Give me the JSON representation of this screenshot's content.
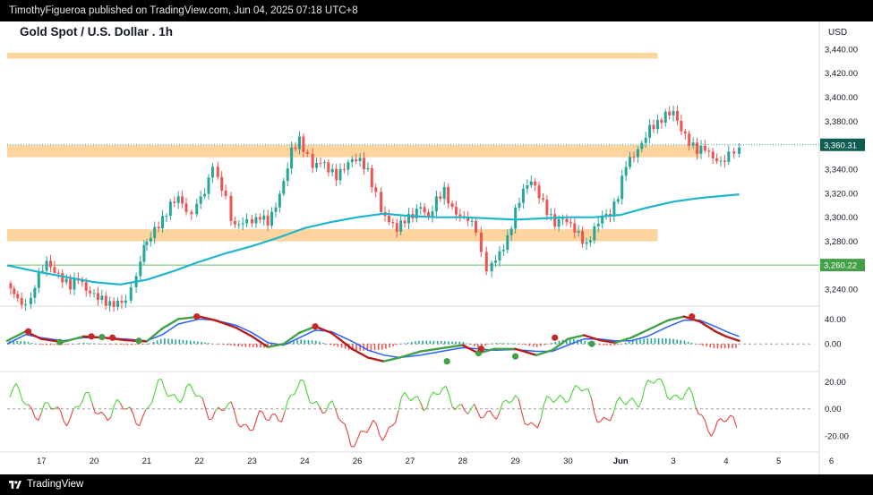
{
  "header": {
    "publisher_text": "TimothyFigueroa published on TradingView.com, Jun 04, 2025 07:18 UTC+8"
  },
  "footer": {
    "brand": "TradingView"
  },
  "chart_data": [
    {
      "type": "candlestick",
      "title": "Gold Spot / U.S. Dollar . 1h",
      "currency": "USD",
      "y_ticks": [
        "3,440.00",
        "3,420.00",
        "3,400.00",
        "3,380.00",
        "3,360.00",
        "3,340.00",
        "3,320.00",
        "3,300.00",
        "3,280.00",
        "3,260.00",
        "3,240.00"
      ],
      "y_tick_values": [
        3440,
        3420,
        3400,
        3380,
        3360,
        3340,
        3320,
        3300,
        3280,
        3260,
        3240
      ],
      "ylim": [
        3226,
        3460
      ],
      "x_ticks": [
        "17",
        "20",
        "21",
        "22",
        "23",
        "24",
        "26",
        "27",
        "28",
        "29",
        "30",
        "Jun",
        "3",
        "4",
        "5",
        "6"
      ],
      "x_tick_positions": [
        0,
        1,
        2,
        3,
        4,
        5,
        6,
        7,
        8,
        9,
        10,
        11,
        12,
        13,
        14,
        15
      ],
      "xlim": [
        -0.65,
        14.6
      ],
      "last_price_label": "3,360.31",
      "last_price": 3360.31,
      "horizontal_line_label": "3,260.22",
      "horizontal_line": 3260.22,
      "zones": [
        {
          "from": 3432,
          "to": 3437,
          "x_end": 11.7
        },
        {
          "from": 3350,
          "to": 3360,
          "x_end": 12.5
        },
        {
          "from": 3280,
          "to": 3290,
          "x_end": 11.7
        }
      ],
      "closes": [
        [
          -0.65,
          3245
        ],
        [
          -0.45,
          3232
        ],
        [
          -0.3,
          3226
        ],
        [
          -0.2,
          3236
        ],
        [
          -0.05,
          3252
        ],
        [
          0.1,
          3262
        ],
        [
          0.25,
          3254
        ],
        [
          0.4,
          3248
        ],
        [
          0.55,
          3243
        ],
        [
          0.7,
          3250
        ],
        [
          0.85,
          3240
        ],
        [
          1.0,
          3236
        ],
        [
          1.15,
          3232
        ],
        [
          1.3,
          3227
        ],
        [
          1.45,
          3228
        ],
        [
          1.6,
          3230
        ],
        [
          1.7,
          3240
        ],
        [
          1.8,
          3248
        ],
        [
          1.88,
          3260
        ],
        [
          1.95,
          3275
        ],
        [
          2.0,
          3280
        ],
        [
          2.15,
          3290
        ],
        [
          2.3,
          3298
        ],
        [
          2.45,
          3310
        ],
        [
          2.6,
          3316
        ],
        [
          2.75,
          3305
        ],
        [
          2.85,
          3300
        ],
        [
          2.95,
          3308
        ],
        [
          3.1,
          3322
        ],
        [
          3.25,
          3343
        ],
        [
          3.35,
          3335
        ],
        [
          3.5,
          3315
        ],
        [
          3.6,
          3300
        ],
        [
          3.75,
          3292
        ],
        [
          3.9,
          3298
        ],
        [
          4.0,
          3293
        ],
        [
          4.15,
          3301
        ],
        [
          4.3,
          3296
        ],
        [
          4.45,
          3310
        ],
        [
          4.6,
          3330
        ],
        [
          4.75,
          3356
        ],
        [
          4.9,
          3364
        ],
        [
          5.05,
          3350
        ],
        [
          5.15,
          3342
        ],
        [
          5.3,
          3346
        ],
        [
          5.45,
          3340
        ],
        [
          5.6,
          3334
        ],
        [
          5.75,
          3342
        ],
        [
          5.9,
          3349
        ],
        [
          6.05,
          3348
        ],
        [
          6.2,
          3338
        ],
        [
          6.35,
          3318
        ],
        [
          6.45,
          3306
        ],
        [
          6.6,
          3296
        ],
        [
          6.75,
          3290
        ],
        [
          6.9,
          3298
        ],
        [
          7.05,
          3302
        ],
        [
          7.2,
          3310
        ],
        [
          7.35,
          3300
        ],
        [
          7.5,
          3315
        ],
        [
          7.65,
          3322
        ],
        [
          7.8,
          3306
        ],
        [
          7.95,
          3300
        ],
        [
          8.1,
          3298
        ],
        [
          8.25,
          3290
        ],
        [
          8.35,
          3268
        ],
        [
          8.45,
          3253
        ],
        [
          8.55,
          3262
        ],
        [
          8.7,
          3270
        ],
        [
          8.85,
          3282
        ],
        [
          9.0,
          3305
        ],
        [
          9.15,
          3322
        ],
        [
          9.3,
          3330
        ],
        [
          9.45,
          3318
        ],
        [
          9.6,
          3305
        ],
        [
          9.75,
          3295
        ],
        [
          9.9,
          3300
        ],
        [
          10.05,
          3294
        ],
        [
          10.2,
          3286
        ],
        [
          10.35,
          3276
        ],
        [
          10.5,
          3290
        ],
        [
          10.65,
          3300
        ],
        [
          10.8,
          3302
        ],
        [
          10.95,
          3318
        ],
        [
          11.1,
          3345
        ],
        [
          11.25,
          3352
        ],
        [
          11.4,
          3362
        ],
        [
          11.55,
          3375
        ],
        [
          11.7,
          3378
        ],
        [
          11.85,
          3385
        ],
        [
          12.0,
          3387
        ],
        [
          12.15,
          3372
        ],
        [
          12.3,
          3362
        ],
        [
          12.45,
          3356
        ],
        [
          12.6,
          3358
        ],
        [
          12.75,
          3350
        ],
        [
          12.9,
          3346
        ],
        [
          13.05,
          3352
        ],
        [
          13.15,
          3356
        ],
        [
          13.25,
          3360
        ]
      ],
      "moving_average": [
        [
          -0.65,
          3260
        ],
        [
          0.0,
          3254
        ],
        [
          0.5,
          3250
        ],
        [
          1.0,
          3246
        ],
        [
          1.5,
          3244
        ],
        [
          2.0,
          3248
        ],
        [
          2.5,
          3255
        ],
        [
          3.0,
          3263
        ],
        [
          3.5,
          3270
        ],
        [
          4.0,
          3276
        ],
        [
          4.5,
          3283
        ],
        [
          5.0,
          3291
        ],
        [
          5.5,
          3296
        ],
        [
          6.0,
          3300
        ],
        [
          6.5,
          3303
        ],
        [
          7.0,
          3301
        ],
        [
          7.5,
          3300
        ],
        [
          8.0,
          3300
        ],
        [
          8.5,
          3299
        ],
        [
          9.0,
          3298
        ],
        [
          9.5,
          3299
        ],
        [
          10.0,
          3300
        ],
        [
          10.5,
          3300
        ],
        [
          11.0,
          3302
        ],
        [
          11.5,
          3308
        ],
        [
          12.0,
          3313
        ],
        [
          12.5,
          3316
        ],
        [
          13.0,
          3318
        ],
        [
          13.25,
          3319
        ]
      ]
    },
    {
      "type": "line",
      "y_ticks": [
        "40.00",
        "0.00"
      ],
      "y_tick_values": [
        40,
        0
      ],
      "ylim": [
        -40,
        55
      ],
      "series": [
        {
          "points": [
            [
              -0.65,
              5
            ],
            [
              -0.3,
              20
            ],
            [
              0.0,
              8
            ],
            [
              0.4,
              3
            ],
            [
              0.8,
              12
            ],
            [
              1.2,
              10
            ],
            [
              1.6,
              6
            ],
            [
              2.0,
              4
            ],
            [
              2.3,
              25
            ],
            [
              2.6,
              40
            ],
            [
              3.0,
              44
            ],
            [
              3.3,
              38
            ],
            [
              3.7,
              26
            ],
            [
              4.0,
              12
            ],
            [
              4.3,
              -5
            ],
            [
              4.6,
              0
            ],
            [
              4.9,
              18
            ],
            [
              5.2,
              28
            ],
            [
              5.5,
              18
            ],
            [
              5.9,
              -8
            ],
            [
              6.2,
              -22
            ],
            [
              6.5,
              -28
            ],
            [
              6.8,
              -22
            ],
            [
              7.2,
              -12
            ],
            [
              7.6,
              -7
            ],
            [
              8.0,
              -2
            ],
            [
              8.3,
              -15
            ],
            [
              8.6,
              -8
            ],
            [
              9.0,
              -8
            ],
            [
              9.4,
              -18
            ],
            [
              9.7,
              -10
            ],
            [
              10.0,
              8
            ],
            [
              10.3,
              14
            ],
            [
              10.6,
              6
            ],
            [
              10.9,
              2
            ],
            [
              11.2,
              10
            ],
            [
              11.5,
              22
            ],
            [
              11.9,
              38
            ],
            [
              12.2,
              44
            ],
            [
              12.5,
              36
            ],
            [
              12.8,
              20
            ],
            [
              13.0,
              12
            ],
            [
              13.25,
              5
            ]
          ]
        },
        {
          "points": [
            [
              -0.65,
              0
            ],
            [
              -0.3,
              15
            ],
            [
              0.0,
              10
            ],
            [
              0.4,
              5
            ],
            [
              0.8,
              10
            ],
            [
              1.2,
              10
            ],
            [
              1.6,
              8
            ],
            [
              2.0,
              5
            ],
            [
              2.3,
              15
            ],
            [
              2.6,
              32
            ],
            [
              3.0,
              40
            ],
            [
              3.3,
              38
            ],
            [
              3.7,
              30
            ],
            [
              4.0,
              18
            ],
            [
              4.3,
              2
            ],
            [
              4.6,
              -2
            ],
            [
              4.9,
              10
            ],
            [
              5.2,
              22
            ],
            [
              5.5,
              20
            ],
            [
              5.9,
              4
            ],
            [
              6.2,
              -10
            ],
            [
              6.5,
              -18
            ],
            [
              6.8,
              -22
            ],
            [
              7.2,
              -18
            ],
            [
              7.6,
              -12
            ],
            [
              8.0,
              -6
            ],
            [
              8.3,
              -8
            ],
            [
              8.6,
              -10
            ],
            [
              9.0,
              -9
            ],
            [
              9.4,
              -12
            ],
            [
              9.7,
              -12
            ],
            [
              10.0,
              -2
            ],
            [
              10.3,
              8
            ],
            [
              10.6,
              8
            ],
            [
              10.9,
              5
            ],
            [
              11.2,
              5
            ],
            [
              11.5,
              12
            ],
            [
              11.9,
              28
            ],
            [
              12.2,
              38
            ],
            [
              12.5,
              38
            ],
            [
              12.8,
              28
            ],
            [
              13.0,
              20
            ],
            [
              13.25,
              12
            ]
          ]
        }
      ],
      "dots": [
        {
          "x": -0.25,
          "y": 20,
          "color": "#c62828"
        },
        {
          "x": 0.35,
          "y": 3,
          "color": "#43a047"
        },
        {
          "x": 0.95,
          "y": 12,
          "color": "#c62828"
        },
        {
          "x": 1.15,
          "y": 11,
          "color": "#43a047"
        },
        {
          "x": 1.35,
          "y": 10,
          "color": "#c62828"
        },
        {
          "x": 1.85,
          "y": 5,
          "color": "#43a047"
        },
        {
          "x": 2.95,
          "y": 44,
          "color": "#c62828"
        },
        {
          "x": 5.2,
          "y": 28,
          "color": "#c62828"
        },
        {
          "x": 7.7,
          "y": -28,
          "color": "#43a047"
        },
        {
          "x": 8.3,
          "y": -15,
          "color": "#43a047"
        },
        {
          "x": 8.35,
          "y": -8,
          "color": "#c62828"
        },
        {
          "x": 9.0,
          "y": -20,
          "color": "#43a047"
        },
        {
          "x": 9.75,
          "y": 10,
          "color": "#c62828"
        },
        {
          "x": 10.45,
          "y": 0,
          "color": "#43a047"
        },
        {
          "x": 12.35,
          "y": 44,
          "color": "#c62828"
        }
      ]
    },
    {
      "type": "line",
      "y_ticks": [
        "20.00",
        "0.00",
        "-20.00"
      ],
      "y_tick_values": [
        20,
        0,
        -20
      ],
      "ylim": [
        -30,
        25
      ]
    }
  ]
}
